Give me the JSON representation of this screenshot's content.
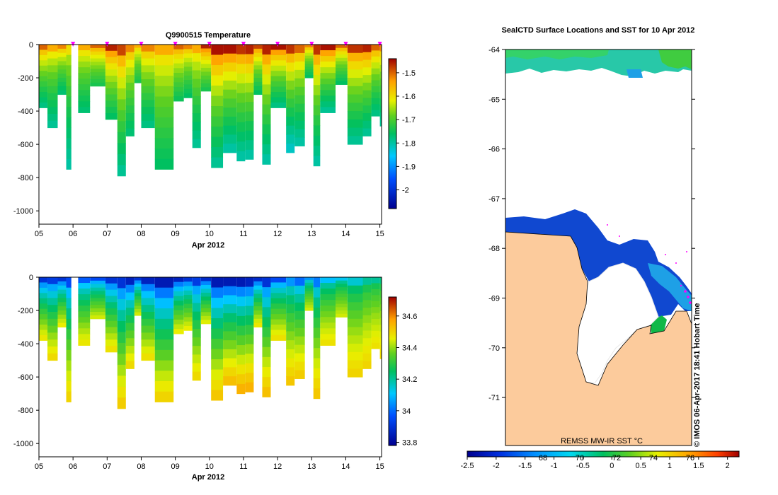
{
  "chart_data": [
    {
      "type": "heatmap",
      "title": "Q9900515  Temperature",
      "xlabel": "Apr 2012",
      "ylabel": "",
      "x_tick_labels": [
        "05",
        "06",
        "07",
        "08",
        "09",
        "10",
        "11",
        "12",
        "13",
        "14",
        "15"
      ],
      "x_range": [
        5,
        15.05
      ],
      "y_tick_labels": [
        "0",
        "-200",
        "-400",
        "-600",
        "-800",
        "-1000"
      ],
      "y_ticks": [
        0,
        -200,
        -400,
        -600,
        -800,
        -1000
      ],
      "ylim": [
        -1080,
        0
      ],
      "colorbar": {
        "ticks": [
          -2,
          -1.9,
          -1.8,
          -1.7,
          -1.6,
          -1.5
        ],
        "tick_labels": [
          "-2",
          "-1.9",
          "-1.8",
          "-1.7",
          "-1.6",
          "-1.5"
        ],
        "range": [
          -2.08,
          -1.44
        ]
      },
      "marker_days": [
        6,
        7,
        8,
        9,
        10,
        11,
        12,
        13,
        14,
        15
      ],
      "marker_color": "#ff00ff",
      "profiles": [
        {
          "x0": 5.0,
          "x1": 5.25,
          "depth": 380,
          "surf": -1.5,
          "deep": -1.78
        },
        {
          "x0": 5.25,
          "x1": 5.55,
          "depth": 500,
          "surf": -1.55,
          "deep": -1.79
        },
        {
          "x0": 5.55,
          "x1": 5.8,
          "depth": 300,
          "surf": -1.52,
          "deep": -1.77
        },
        {
          "x0": 5.8,
          "x1": 5.95,
          "depth": 750,
          "surf": -1.6,
          "deep": -1.8
        },
        {
          "x0": 6.15,
          "x1": 6.5,
          "depth": 410,
          "surf": -1.55,
          "deep": -1.77
        },
        {
          "x0": 6.5,
          "x1": 6.95,
          "depth": 250,
          "surf": -1.5,
          "deep": -1.74
        },
        {
          "x0": 6.95,
          "x1": 7.3,
          "depth": 450,
          "surf": -1.46,
          "deep": -1.76
        },
        {
          "x0": 7.3,
          "x1": 7.55,
          "depth": 790,
          "surf": -1.48,
          "deep": -1.79
        },
        {
          "x0": 7.55,
          "x1": 7.8,
          "depth": 550,
          "surf": -1.52,
          "deep": -1.77
        },
        {
          "x0": 7.8,
          "x1": 8.0,
          "depth": 230,
          "surf": -1.55,
          "deep": -1.74
        },
        {
          "x0": 8.0,
          "x1": 8.4,
          "depth": 500,
          "surf": -1.52,
          "deep": -1.78
        },
        {
          "x0": 8.4,
          "x1": 8.95,
          "depth": 750,
          "surf": -1.55,
          "deep": -1.76
        },
        {
          "x0": 8.95,
          "x1": 9.25,
          "depth": 340,
          "surf": -1.5,
          "deep": -1.75
        },
        {
          "x0": 9.25,
          "x1": 9.5,
          "depth": 320,
          "surf": -1.52,
          "deep": -1.76
        },
        {
          "x0": 9.5,
          "x1": 9.75,
          "depth": 620,
          "surf": -1.55,
          "deep": -1.79
        },
        {
          "x0": 9.75,
          "x1": 10.05,
          "depth": 280,
          "surf": -1.46,
          "deep": -1.74
        },
        {
          "x0": 10.05,
          "x1": 10.4,
          "depth": 740,
          "surf": -1.45,
          "deep": -1.79
        },
        {
          "x0": 10.4,
          "x1": 10.8,
          "depth": 650,
          "surf": -1.45,
          "deep": -1.8
        },
        {
          "x0": 10.8,
          "x1": 11.05,
          "depth": 700,
          "surf": -1.47,
          "deep": -1.8
        },
        {
          "x0": 11.05,
          "x1": 11.3,
          "depth": 690,
          "surf": -1.46,
          "deep": -1.8
        },
        {
          "x0": 11.3,
          "x1": 11.55,
          "depth": 300,
          "surf": -1.48,
          "deep": -1.76
        },
        {
          "x0": 11.55,
          "x1": 11.8,
          "depth": 720,
          "surf": -1.46,
          "deep": -1.8
        },
        {
          "x0": 11.8,
          "x1": 12.25,
          "depth": 380,
          "surf": -1.45,
          "deep": -1.78
        },
        {
          "x0": 12.25,
          "x1": 12.5,
          "depth": 650,
          "surf": -1.47,
          "deep": -1.82
        },
        {
          "x0": 12.5,
          "x1": 12.8,
          "depth": 610,
          "surf": -1.5,
          "deep": -1.8
        },
        {
          "x0": 12.8,
          "x1": 13.05,
          "depth": 200,
          "surf": -1.52,
          "deep": -1.76
        },
        {
          "x0": 13.05,
          "x1": 13.25,
          "depth": 730,
          "surf": -1.47,
          "deep": -1.8
        },
        {
          "x0": 13.25,
          "x1": 13.7,
          "depth": 410,
          "surf": -1.45,
          "deep": -1.79
        },
        {
          "x0": 13.7,
          "x1": 14.05,
          "depth": 240,
          "surf": -1.5,
          "deep": -1.76
        },
        {
          "x0": 14.05,
          "x1": 14.5,
          "depth": 600,
          "surf": -1.47,
          "deep": -1.79
        },
        {
          "x0": 14.5,
          "x1": 14.75,
          "depth": 550,
          "surf": -1.46,
          "deep": -1.79
        },
        {
          "x0": 14.75,
          "x1": 15.0,
          "depth": 430,
          "surf": -1.5,
          "deep": -1.78
        },
        {
          "x0": 15.0,
          "x1": 15.05,
          "depth": 490,
          "surf": -1.52,
          "deep": -1.79
        }
      ]
    },
    {
      "type": "heatmap",
      "title": "",
      "xlabel": "Apr 2012",
      "ylabel": "",
      "x_tick_labels": [
        "05",
        "06",
        "07",
        "08",
        "09",
        "10",
        "11",
        "12",
        "13",
        "14",
        "15"
      ],
      "x_range": [
        5,
        15.05
      ],
      "y_tick_labels": [
        "0",
        "-200",
        "-400",
        "-600",
        "-800",
        "-1000"
      ],
      "y_ticks": [
        0,
        -200,
        -400,
        -600,
        -800,
        -1000
      ],
      "ylim": [
        -1080,
        0
      ],
      "colorbar": {
        "ticks": [
          33.8,
          34,
          34.2,
          34.4,
          34.6
        ],
        "tick_labels": [
          "33.8",
          "34",
          "34.2",
          "34.4",
          "34.6"
        ],
        "range": [
          33.78,
          34.72
        ]
      },
      "profiles": [
        {
          "x0": 5.0,
          "x1": 5.25,
          "depth": 380,
          "surf": 33.9,
          "deep": 34.47
        },
        {
          "x0": 5.25,
          "x1": 5.55,
          "depth": 500,
          "surf": 33.92,
          "deep": 34.49
        },
        {
          "x0": 5.55,
          "x1": 5.8,
          "depth": 300,
          "surf": 33.9,
          "deep": 34.46
        },
        {
          "x0": 5.8,
          "x1": 5.95,
          "depth": 750,
          "surf": 33.95,
          "deep": 34.5
        },
        {
          "x0": 6.15,
          "x1": 6.5,
          "depth": 410,
          "surf": 33.98,
          "deep": 34.47
        },
        {
          "x0": 6.5,
          "x1": 6.95,
          "depth": 250,
          "surf": 33.95,
          "deep": 34.44
        },
        {
          "x0": 6.95,
          "x1": 7.3,
          "depth": 450,
          "surf": 33.9,
          "deep": 34.48
        },
        {
          "x0": 7.3,
          "x1": 7.55,
          "depth": 790,
          "surf": 33.9,
          "deep": 34.51
        },
        {
          "x0": 7.55,
          "x1": 7.8,
          "depth": 550,
          "surf": 33.86,
          "deep": 34.49
        },
        {
          "x0": 7.8,
          "x1": 8.0,
          "depth": 230,
          "surf": 33.9,
          "deep": 34.44
        },
        {
          "x0": 8.0,
          "x1": 8.4,
          "depth": 500,
          "surf": 33.86,
          "deep": 34.48
        },
        {
          "x0": 8.4,
          "x1": 8.95,
          "depth": 750,
          "surf": 33.84,
          "deep": 34.5
        },
        {
          "x0": 8.95,
          "x1": 9.25,
          "depth": 340,
          "surf": 33.86,
          "deep": 34.46
        },
        {
          "x0": 9.25,
          "x1": 9.5,
          "depth": 320,
          "surf": 33.9,
          "deep": 34.46
        },
        {
          "x0": 9.5,
          "x1": 9.75,
          "depth": 620,
          "surf": 33.92,
          "deep": 34.49
        },
        {
          "x0": 9.75,
          "x1": 10.05,
          "depth": 280,
          "surf": 33.88,
          "deep": 34.45
        },
        {
          "x0": 10.05,
          "x1": 10.4,
          "depth": 740,
          "surf": 33.84,
          "deep": 34.52
        },
        {
          "x0": 10.4,
          "x1": 10.8,
          "depth": 650,
          "surf": 33.84,
          "deep": 34.53
        },
        {
          "x0": 10.8,
          "x1": 11.05,
          "depth": 700,
          "surf": 33.84,
          "deep": 34.55
        },
        {
          "x0": 11.05,
          "x1": 11.3,
          "depth": 690,
          "surf": 33.86,
          "deep": 34.55
        },
        {
          "x0": 11.3,
          "x1": 11.55,
          "depth": 300,
          "surf": 33.88,
          "deep": 34.47
        },
        {
          "x0": 11.55,
          "x1": 11.8,
          "depth": 720,
          "surf": 33.9,
          "deep": 34.53
        },
        {
          "x0": 11.8,
          "x1": 12.25,
          "depth": 380,
          "surf": 33.95,
          "deep": 34.48
        },
        {
          "x0": 12.25,
          "x1": 12.5,
          "depth": 650,
          "surf": 34.05,
          "deep": 34.52
        },
        {
          "x0": 12.5,
          "x1": 12.8,
          "depth": 610,
          "surf": 34.0,
          "deep": 34.51
        },
        {
          "x0": 12.8,
          "x1": 13.05,
          "depth": 200,
          "surf": 34.05,
          "deep": 34.44
        },
        {
          "x0": 13.05,
          "x1": 13.25,
          "depth": 730,
          "surf": 34.02,
          "deep": 34.52
        },
        {
          "x0": 13.25,
          "x1": 13.7,
          "depth": 410,
          "surf": 34.1,
          "deep": 34.48
        },
        {
          "x0": 13.7,
          "x1": 14.05,
          "depth": 240,
          "surf": 34.12,
          "deep": 34.44
        },
        {
          "x0": 14.05,
          "x1": 14.5,
          "depth": 600,
          "surf": 34.15,
          "deep": 34.5
        },
        {
          "x0": 14.5,
          "x1": 14.75,
          "depth": 550,
          "surf": 34.2,
          "deep": 34.5
        },
        {
          "x0": 14.75,
          "x1": 15.0,
          "depth": 430,
          "surf": 34.2,
          "deep": 34.48
        },
        {
          "x0": 15.0,
          "x1": 15.05,
          "depth": 490,
          "surf": 34.22,
          "deep": 34.49
        }
      ]
    },
    {
      "type": "heatmap",
      "title": "SealCTD Surface Locations and SST for 10 Apr 2012",
      "xlabel": "",
      "ylabel": "",
      "y_tick_labels": [
        "-64",
        "-65",
        "-66",
        "-67",
        "-68",
        "-69",
        "-70",
        "-71"
      ],
      "y_ticks": [
        -64,
        -65,
        -66,
        -67,
        -68,
        -69,
        -70,
        -71
      ],
      "ylim": [
        -71.8,
        -64
      ],
      "source_label": "REMSS MW-IR SST °C",
      "credit": "© IMOS 06-Apr-2017 18:41 Hobart Time",
      "colorbar": {
        "ticks": [
          -2.5,
          -2,
          -1.5,
          -1,
          -0.5,
          0,
          0.5,
          1,
          1.5,
          2
        ],
        "tick_labels": [
          "-2.5",
          "-2",
          "-1.5",
          "-1",
          "-0.5",
          "0",
          "0.5",
          "1",
          "1.5",
          "2"
        ],
        "range": [
          -2.5,
          2.2
        ],
        "fahrenheit_labels": [
          "68",
          "70",
          "72",
          "74",
          "76"
        ]
      },
      "land_color": "#fccb9c",
      "ice_color": "#ffffff",
      "sst_colors": {
        "cold": "#1040c8",
        "mid": "#20a8e8",
        "cyan": "#30d8f0",
        "green": "#10c040"
      }
    }
  ]
}
